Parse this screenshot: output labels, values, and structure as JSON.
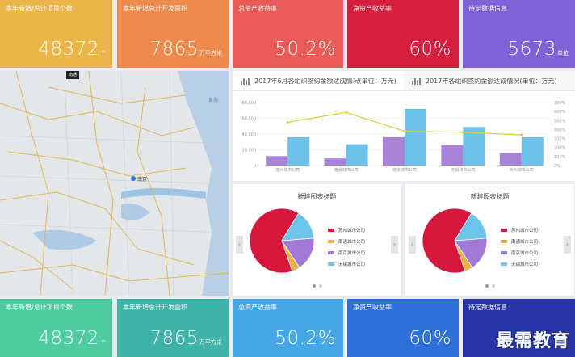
{
  "kpi_top": [
    {
      "label": "本年新增/总计项目个数",
      "value": "48372",
      "unit": "个",
      "color": "#ecb54a"
    },
    {
      "label": "本年新增总计开发面积",
      "value": "7865",
      "unit": "万平方米",
      "color": "#ed8a4c"
    },
    {
      "label": "总资产收益率",
      "value": "50.2%",
      "unit": "",
      "color": "#e85b56"
    },
    {
      "label": "净资产收益率",
      "value": "60%",
      "unit": "",
      "color": "#d61f3c"
    },
    {
      "label": "待定数据信息",
      "value": "5673",
      "unit": "单位",
      "color": "#7f63d6"
    }
  ],
  "kpi_bottom": [
    {
      "label": "本年新增/总计项目个数",
      "value": "48372",
      "unit": "个",
      "color": "#4fcba0"
    },
    {
      "label": "本年新增总计开发面积",
      "value": "7865",
      "unit": "万平方米",
      "color": "#3fb3a8"
    },
    {
      "label": "总资产收益率",
      "value": "50.2%",
      "unit": "",
      "color": "#46a6e6"
    },
    {
      "label": "净资产收益率",
      "value": "60%",
      "unit": "",
      "color": "#2e6fd8"
    },
    {
      "label": "待定数据信息",
      "value": "",
      "unit": "",
      "color": "#2a36a8"
    }
  ],
  "map": {
    "tag": "南通",
    "city_label": "南京",
    "sea_label": "黄海"
  },
  "combo": {
    "tabs": [
      "2017年6月各组织签约金额达成情况(单位：万元)",
      "2017年各组织签约金额达成情况(单位：万元)"
    ],
    "chart_data": {
      "type": "bar",
      "categories": [
        "苏州城市公司",
        "南通城市公司",
        "南京城市公司",
        "无锡城市公司",
        "常州城市公司"
      ],
      "series": [
        {
          "values": [
            12000,
            9000,
            36000,
            26000,
            16000
          ],
          "color": "#a883d8"
        },
        {
          "values": [
            36000,
            27000,
            72000,
            49000,
            36000
          ],
          "color": "#6ec2e8"
        },
        {
          "values": [
            480,
            590,
            380,
            370,
            340
          ],
          "color": "#d8d23a",
          "type": "line",
          "axis": "right"
        }
      ],
      "ylim": [
        0,
        80000
      ],
      "yticks": [
        "80,000",
        "60,000",
        "40,000",
        "20,000",
        "0"
      ],
      "y2ticks": [
        "700%",
        "600%",
        "500%",
        "400%",
        "300%",
        "200%",
        "100%",
        "0%"
      ],
      "y2lim": [
        0,
        700
      ]
    }
  },
  "pies": [
    {
      "title": "新建图表标题",
      "legend": [
        "苏州城市公司",
        "南通城市公司",
        "南京城市公司",
        "无锡城市公司"
      ],
      "chart_data": {
        "type": "pie",
        "labels": [
          "苏州城市公司",
          "南通城市公司",
          "南京城市公司",
          "无锡城市公司"
        ],
        "values": [
          64,
          4,
          17,
          15
        ],
        "colors": [
          "#d6173c",
          "#e8b046",
          "#a27ad6",
          "#6cc4ea"
        ]
      }
    },
    {
      "title": "新建图表标题",
      "legend": [
        "苏州城市公司",
        "南通城市公司",
        "南京城市公司",
        "无锡城市公司"
      ],
      "chart_data": {
        "type": "pie",
        "labels": [
          "苏州城市公司",
          "南通城市公司",
          "南京城市公司",
          "无锡城市公司"
        ],
        "values": [
          64,
          4,
          17,
          15
        ],
        "colors": [
          "#d6173c",
          "#e8b046",
          "#a27ad6",
          "#6cc4ea"
        ]
      }
    }
  ],
  "brand": "最需教育",
  "icons": {
    "prev": "‹",
    "next": "›"
  }
}
